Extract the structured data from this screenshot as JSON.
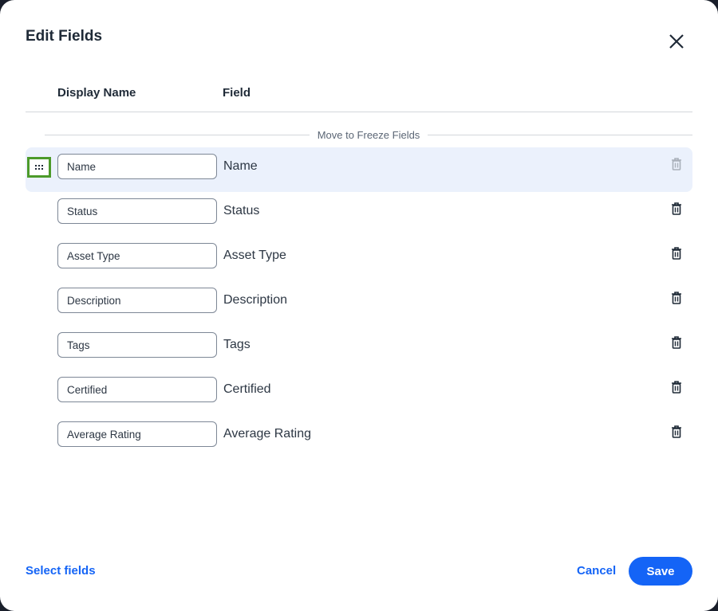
{
  "title": "Edit Fields",
  "columns": {
    "display_name": "Display Name",
    "field": "Field"
  },
  "freeze_label": "Move to Freeze Fields",
  "rows": [
    {
      "display": "Name",
      "field": "Name",
      "selected": true
    },
    {
      "display": "Status",
      "field": "Status"
    },
    {
      "display": "Asset Type",
      "field": "Asset Type"
    },
    {
      "display": "Description",
      "field": "Description"
    },
    {
      "display": "Tags",
      "field": "Tags"
    },
    {
      "display": "Certified",
      "field": "Certified"
    },
    {
      "display": "Average Rating",
      "field": "Average Rating"
    }
  ],
  "footer": {
    "select_fields": "Select fields",
    "cancel": "Cancel",
    "save": "Save"
  },
  "colors": {
    "accent": "#1464f6",
    "selected_row": "#ebf1fc",
    "focus_outline": "#4c9a2a"
  }
}
